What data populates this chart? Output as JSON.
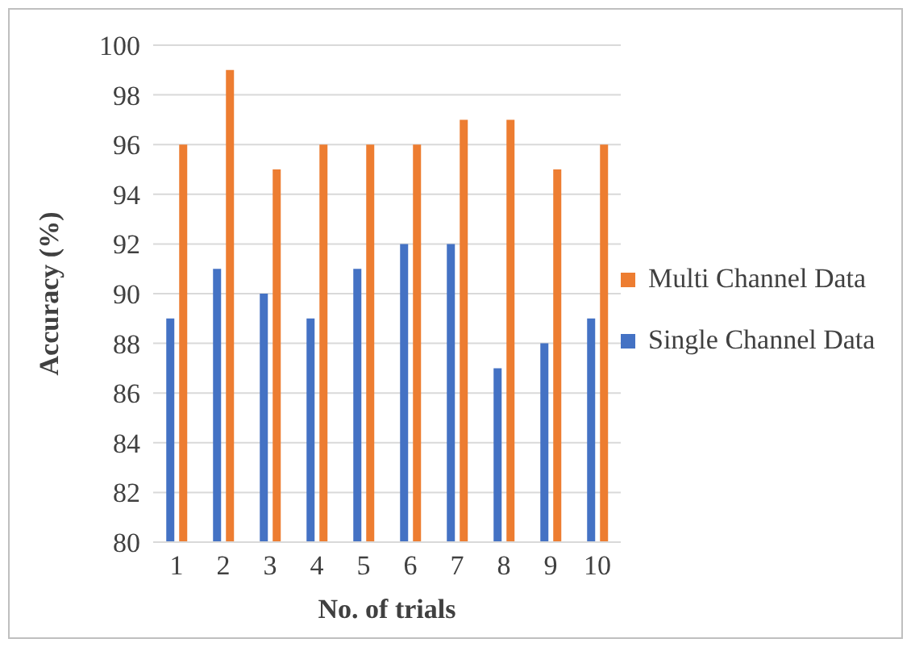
{
  "chart_data": {
    "type": "bar",
    "xlabel": "No. of trials",
    "ylabel": "Accuracy (%)",
    "categories": [
      "1",
      "2",
      "3",
      "4",
      "5",
      "6",
      "7",
      "8",
      "9",
      "10"
    ],
    "series": [
      {
        "name": "Single Channel Data",
        "color": "#4472c4",
        "values": [
          89,
          91,
          90,
          89,
          91,
          92,
          92,
          87,
          88,
          89
        ]
      },
      {
        "name": "Multi Channel Data",
        "color": "#ed7d31",
        "values": [
          96,
          99,
          95,
          96,
          96,
          96,
          97,
          97,
          95,
          96
        ]
      }
    ],
    "ylim": [
      80,
      100
    ],
    "yticks": [
      80,
      82,
      84,
      86,
      88,
      90,
      92,
      94,
      96,
      98,
      100
    ],
    "grid": "y",
    "legend": "right"
  }
}
